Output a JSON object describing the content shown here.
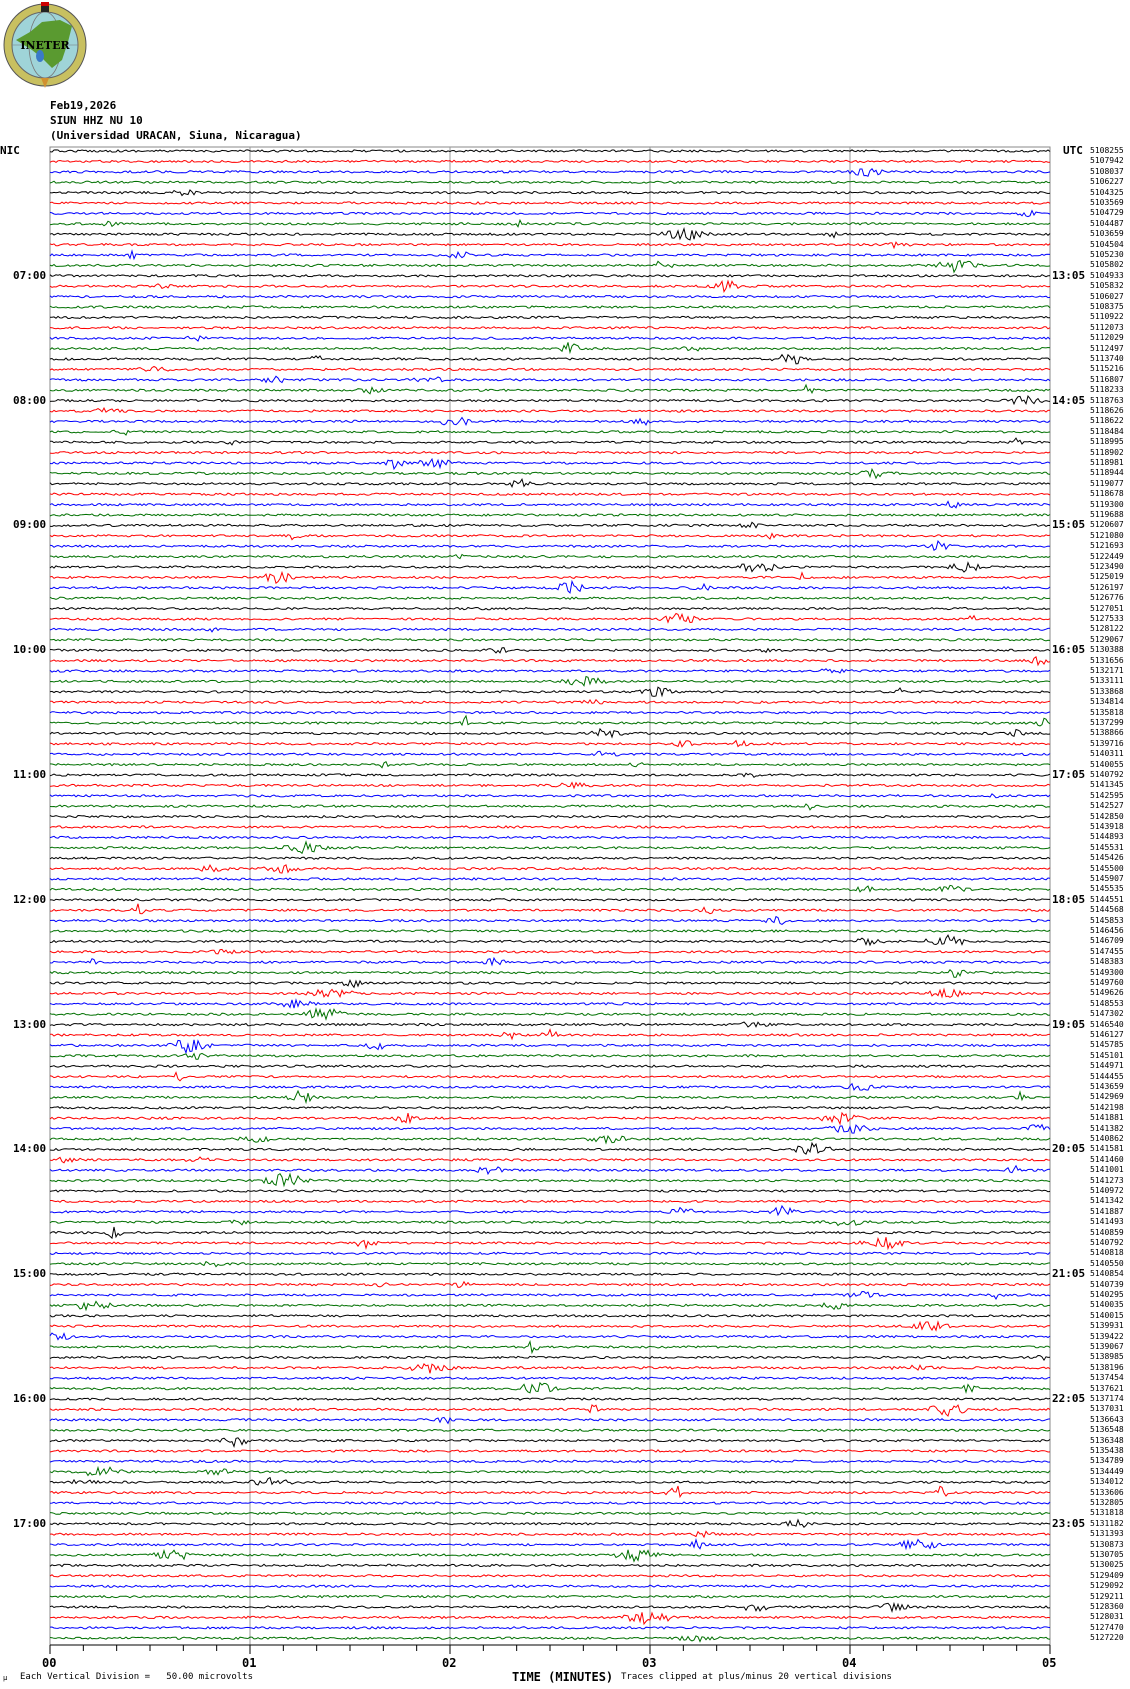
{
  "logo": {
    "text": "INETER",
    "colors": {
      "ring": "#c8c060",
      "globe": "#9fd4d8",
      "land": "#5a9a30",
      "lake": "#3a7ac8"
    }
  },
  "header": {
    "date": "Feb19,2026",
    "station": "SIUN HHZ NU 10",
    "location": "(Universidad URACAN, Siuna, Nicaragua)"
  },
  "chart_data": {
    "type": "line",
    "title": "",
    "left_axis_label": "NIC",
    "right_axis_label": "UTC",
    "xlabel": "TIME (MINUTES)",
    "xlim": [
      0,
      5
    ],
    "x_ticks": [
      "00",
      "01",
      "02",
      "03",
      "04",
      "05"
    ],
    "minor_tick_seconds": 10,
    "grid": "vertical at each minute",
    "trace_colors": [
      "#000000",
      "#ff0000",
      "#0000ff",
      "#007000"
    ],
    "left_time_labels": [
      "07:00",
      "08:00",
      "09:00",
      "10:00",
      "11:00",
      "12:00",
      "13:00",
      "14:00",
      "15:00",
      "16:00",
      "17:00"
    ],
    "right_time_labels": [
      "13:05",
      "14:05",
      "15:05",
      "16:05",
      "17:05",
      "18:05",
      "19:05",
      "20:05",
      "21:05",
      "22:05",
      "23:05"
    ],
    "rows_per_hour": 12,
    "row_values": [
      "5108255",
      "5107942",
      "5108037",
      "5106227",
      "5104325",
      "5103569",
      "5104729",
      "5104487",
      "5103659",
      "5104504",
      "5105230",
      "5105802",
      "5104933",
      "5105832",
      "5106027",
      "5108375",
      "5110922",
      "5112073",
      "5112029",
      "5112497",
      "5113740",
      "5115216",
      "5116807",
      "5118233",
      "5118763",
      "5118626",
      "5118622",
      "5118484",
      "5118995",
      "5118902",
      "5118981",
      "5118944",
      "5119077",
      "5118678",
      "5119300",
      "5119688",
      "5120607",
      "5121080",
      "5121693",
      "5122449",
      "5123490",
      "5125019",
      "5126197",
      "5126776",
      "5127051",
      "5127533",
      "5128122",
      "5129067",
      "5130388",
      "5131656",
      "5132171",
      "5133111",
      "5133868",
      "5134814",
      "5135818",
      "5137299",
      "5138866",
      "5139716",
      "5140311",
      "5140055",
      "5140792",
      "5141345",
      "5142595",
      "5142527",
      "5142850",
      "5143918",
      "5144893",
      "5145531",
      "5145426",
      "5145500",
      "5145907",
      "5145535",
      "5144551",
      "5144568",
      "5145853",
      "5146456",
      "5146709",
      "5147455",
      "5148383",
      "5149300",
      "5149760",
      "5149626",
      "5148553",
      "5147302",
      "5146540",
      "5146127",
      "5145785",
      "5145101",
      "5144971",
      "5144455",
      "5143659",
      "5142969",
      "5142198",
      "5141881",
      "5141382",
      "5140862",
      "5141581",
      "5141460",
      "5141001",
      "5141273",
      "5140972",
      "5141342",
      "5141887",
      "5141493",
      "5140859",
      "5140792",
      "5140818",
      "5140550",
      "5140854",
      "5140739",
      "5140295",
      "5140035",
      "5140015",
      "5139931",
      "5139422",
      "5139067",
      "5138985",
      "5138196",
      "5137454",
      "5137621",
      "5137174",
      "5137031",
      "5136643",
      "5136548",
      "5136348",
      "5135438",
      "5134789",
      "5134449",
      "5134012",
      "5133606",
      "5132805",
      "5131818",
      "5131182",
      "5131393",
      "5130873",
      "5130705",
      "5130025",
      "5129409",
      "5129092",
      "5129211",
      "5128360",
      "5128031",
      "5127470",
      "5127220"
    ]
  },
  "footer": {
    "scale_note": "Each Vertical Division =   50.00 microvolts",
    "clip_note": "Traces clipped at plus/minus 20 vertical divisions"
  }
}
